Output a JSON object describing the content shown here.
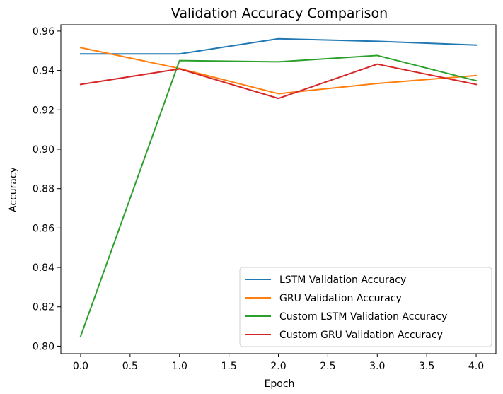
{
  "chart_data": {
    "type": "line",
    "title": "Validation Accuracy Comparison",
    "xlabel": "Epoch",
    "ylabel": "Accuracy",
    "xlim": [
      -0.2,
      4.2
    ],
    "ylim": [
      0.7962,
      0.9632
    ],
    "grid": false,
    "legend_position": "lower-right",
    "x": [
      0,
      1,
      2,
      3,
      4
    ],
    "x_ticks": [
      "0.0",
      "0.5",
      "1.0",
      "1.5",
      "2.0",
      "2.5",
      "3.0",
      "3.5",
      "4.0"
    ],
    "y_ticks": [
      "0.80",
      "0.82",
      "0.84",
      "0.86",
      "0.88",
      "0.90",
      "0.92",
      "0.94",
      "0.96"
    ],
    "series": [
      {
        "name": "LSTM Validation Accuracy",
        "color": "#1f77b4",
        "values": [
          0.9484,
          0.9484,
          0.9561,
          0.9548,
          0.9529
        ]
      },
      {
        "name": "GRU Validation Accuracy",
        "color": "#ff7f0e",
        "values": [
          0.9516,
          0.941,
          0.9282,
          0.9334,
          0.9374
        ]
      },
      {
        "name": "Custom LSTM Validation Accuracy",
        "color": "#2ca02c",
        "values": [
          0.805,
          0.945,
          0.9444,
          0.9476,
          0.9348
        ]
      },
      {
        "name": "Custom GRU Validation Accuracy",
        "color": "#d62728",
        "values": [
          0.9329,
          0.9408,
          0.9258,
          0.9432,
          0.9329
        ]
      }
    ]
  }
}
